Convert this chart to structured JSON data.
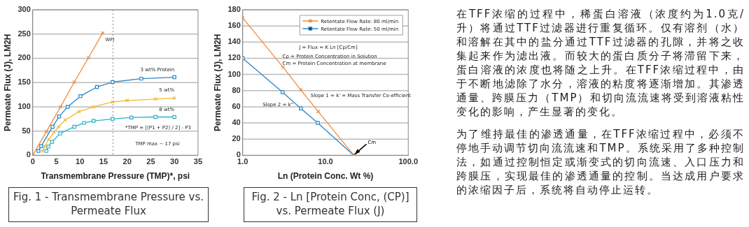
{
  "chart_data": [
    {
      "type": "line",
      "title": "Fig. 1 - Transmembrane Pressure vs. Permeate Flux",
      "xlabel": "Transmembrane Pressure (TMP)*, psi",
      "ylabel": "Permeate Flux (J), LM2H",
      "xlim": [
        0,
        35
      ],
      "xticks": [
        0,
        5,
        10,
        15,
        20,
        25,
        30,
        35
      ],
      "ylim": [
        0,
        300
      ],
      "yticks": [
        0,
        50,
        100,
        150,
        200,
        250,
        300
      ],
      "grid": "y",
      "legend": false,
      "line_style": "solid",
      "series": [
        {
          "name": "WFI",
          "color": "#f08a3c",
          "marker": "cross",
          "x": [
            0,
            2.9,
            5.9,
            8.8,
            11.8,
            14.8
          ],
          "values": [
            0,
            49,
            100,
            151,
            201,
            252
          ]
        },
        {
          "name": "3 wt% Protein",
          "color": "#2a86c8",
          "marker": "square",
          "x": [
            1.2,
            1.8,
            4.2,
            5.6,
            7.4,
            10.1,
            13.6,
            16.9,
            23,
            30
          ],
          "values": [
            9,
            19,
            59,
            80,
            100,
            122,
            141,
            151,
            158,
            161
          ]
        },
        {
          "name": "5 wt%",
          "color": "#f5b82e",
          "marker": "cross",
          "x": [
            2.1,
            2.6,
            3.4,
            4.5,
            5.5,
            6.9,
            9.8,
            12.9,
            16.9,
            20,
            26,
            30
          ],
          "values": [
            9,
            19,
            33,
            47,
            59,
            73,
            90,
            100,
            110,
            113,
            116,
            118
          ]
        },
        {
          "name": "8 wt%",
          "color": "#27b3c8",
          "marker": "square",
          "x": [
            2.9,
            3.3,
            4.1,
            5.8,
            8.8,
            10.9,
            12.9,
            16.9,
            20.9,
            26,
            30
          ],
          "values": [
            9,
            18,
            28,
            45,
            59,
            67,
            71,
            75,
            78,
            79,
            79
          ]
        }
      ],
      "ref_lines": [
        {
          "axis": "x",
          "value": 17,
          "color": "#999999",
          "line_style": "dotted"
        }
      ],
      "annotations": [
        "*TMP = [(P1 + P2) / 2] - P3",
        "TMP max ~ 17 psi"
      ]
    },
    {
      "type": "line",
      "title": "Fig. 2 - Ln [Protein Conc, (CP)] vs. Permeate Flux (J)",
      "xlabel": "Ln (Protein Conc. Wt %)",
      "ylabel": "Permeate Flux (J), LM2H",
      "log": "x",
      "xlim": [
        1,
        100
      ],
      "xticks": [
        {
          "value": 1,
          "label": "1.0"
        },
        {
          "value": 10,
          "label": "10.0"
        },
        {
          "value": 100,
          "label": "100.0"
        }
      ],
      "ylim": [
        0,
        180
      ],
      "yticks": [
        0,
        20,
        40,
        60,
        80,
        100,
        120,
        140,
        160,
        180
      ],
      "grid": "y",
      "legend": "top right",
      "line_style": "solid",
      "series": [
        {
          "name": "Retentate Flow Rate: 80 ml/min",
          "color": "#f08a3c",
          "marker": "cross",
          "x": [
            1,
            3.07,
            5.03,
            8.19,
            22
          ],
          "values": [
            170,
            109,
            81,
            54,
            0
          ]
        },
        {
          "name": "Retentate Flow Rate: 50 ml/min",
          "color": "#2a86c8",
          "marker": "square",
          "x": [
            1,
            3.03,
            5.03,
            8.07,
            22
          ],
          "values": [
            120,
            78,
            58,
            40,
            0
          ]
        }
      ],
      "annotations": [
        "J = Flux = K Ln [Cp/Cm]",
        "Cp = Protein Concentration in Solution",
        "Cm = Protein Concentration at membrane",
        "Slope 1 = k' = Mass Transfer Co-efficient",
        "Slope 2 = k''",
        {
          "text": "Cm",
          "x": 22,
          "y": 0
        }
      ]
    },
    {
      "type": "other",
      "annotations": [
        "在TFF浓缩的过程中，稀蛋白溶液（浓度约为1.0克/升）将通过TTF过滤器进行重复循环。仅有溶剂（水）和溶解在其中的盐分通过TTF过滤器的孔隙，并将之收集起来作为滤出液。而较大的蛋白质分子将滞留下来，蛋白溶液的浓度也将随之上升。在TFF浓缩过程中，由于不断地滤除了水分，溶液的粘度将逐渐增加。其渗透通量、跨膜压力（TMP）和切向流流速将受到溶液粘性变化的影响，产生显著的变化。",
        "为了维持最佳的渗透通量，在TFF浓缩过程中，必须不停地手动调节切向流流速和TMP。系统采用了多种控制法，如通过控制恒定或渐变式的切向流速、入口压力和跨膜压，实现最佳的渗透通量的控制。当达成用户要求的浓缩因子后，系统将自动停止运转。"
      ]
    }
  ]
}
